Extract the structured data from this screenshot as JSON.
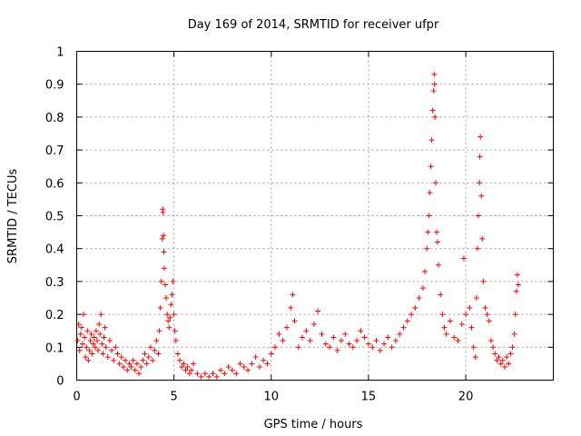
{
  "chart_data": {
    "type": "scatter",
    "title": "Day 169 of 2014, SRMTID for receiver ufpr",
    "xlabel": "GPS time / hours",
    "ylabel": "SRMTID / TECUs",
    "xlim": [
      0,
      24.5
    ],
    "ylim": [
      0,
      1
    ],
    "xticks": [
      0,
      5,
      10,
      15,
      20
    ],
    "xtick_labels": [
      "0",
      "5",
      "10",
      "15",
      "20"
    ],
    "yticks": [
      0,
      0.1,
      0.2,
      0.3,
      0.4,
      0.5,
      0.6,
      0.7,
      0.8,
      0.9,
      1
    ],
    "ytick_labels": [
      "0",
      "0.1",
      "0.2",
      "0.3",
      "0.4",
      "0.5",
      "0.6",
      "0.7",
      "0.8",
      "0.9",
      "1"
    ],
    "grid": true,
    "marker": "+",
    "color": "#ff0000",
    "series": [
      {
        "name": "SRMTID",
        "points": [
          [
            0.05,
            0.12
          ],
          [
            0.1,
            0.17
          ],
          [
            0.15,
            0.09
          ],
          [
            0.2,
            0.14
          ],
          [
            0.25,
            0.16
          ],
          [
            0.3,
            0.11
          ],
          [
            0.35,
            0.2
          ],
          [
            0.4,
            0.13
          ],
          [
            0.45,
            0.07
          ],
          [
            0.5,
            0.1
          ],
          [
            0.55,
            0.15
          ],
          [
            0.6,
            0.06
          ],
          [
            0.65,
            0.09
          ],
          [
            0.7,
            0.12
          ],
          [
            0.75,
            0.14
          ],
          [
            0.8,
            0.08
          ],
          [
            0.85,
            0.11
          ],
          [
            0.9,
            0.13
          ],
          [
            0.95,
            0.1
          ],
          [
            1.0,
            0.15
          ],
          [
            1.05,
            0.12
          ],
          [
            1.1,
            0.09
          ],
          [
            1.15,
            0.17
          ],
          [
            1.2,
            0.14
          ],
          [
            1.25,
            0.2
          ],
          [
            1.3,
            0.11
          ],
          [
            1.35,
            0.08
          ],
          [
            1.4,
            0.13
          ],
          [
            1.45,
            0.16
          ],
          [
            1.5,
            0.1
          ],
          [
            1.6,
            0.07
          ],
          [
            1.7,
            0.12
          ],
          [
            1.8,
            0.09
          ],
          [
            1.9,
            0.06
          ],
          [
            2.0,
            0.1
          ],
          [
            2.1,
            0.08
          ],
          [
            2.2,
            0.05
          ],
          [
            2.3,
            0.07
          ],
          [
            2.4,
            0.04
          ],
          [
            2.5,
            0.06
          ],
          [
            2.6,
            0.03
          ],
          [
            2.7,
            0.05
          ],
          [
            2.8,
            0.04
          ],
          [
            2.9,
            0.06
          ],
          [
            3.0,
            0.03
          ],
          [
            3.1,
            0.05
          ],
          [
            3.2,
            0.02
          ],
          [
            3.3,
            0.04
          ],
          [
            3.4,
            0.06
          ],
          [
            3.5,
            0.08
          ],
          [
            3.6,
            0.05
          ],
          [
            3.7,
            0.07
          ],
          [
            3.8,
            0.1
          ],
          [
            3.9,
            0.06
          ],
          [
            4.0,
            0.09
          ],
          [
            4.1,
            0.12
          ],
          [
            4.2,
            0.08
          ],
          [
            4.25,
            0.15
          ],
          [
            4.3,
            0.22
          ],
          [
            4.35,
            0.3
          ],
          [
            4.4,
            0.43
          ],
          [
            4.42,
            0.52
          ],
          [
            4.44,
            0.51
          ],
          [
            4.46,
            0.44
          ],
          [
            4.48,
            0.39
          ],
          [
            4.5,
            0.34
          ],
          [
            4.55,
            0.29
          ],
          [
            4.6,
            0.25
          ],
          [
            4.65,
            0.2
          ],
          [
            4.7,
            0.18
          ],
          [
            4.75,
            0.16
          ],
          [
            4.8,
            0.19
          ],
          [
            4.85,
            0.23
          ],
          [
            4.9,
            0.26
          ],
          [
            4.95,
            0.3
          ],
          [
            5.0,
            0.2
          ],
          [
            5.05,
            0.15
          ],
          [
            5.1,
            0.12
          ],
          [
            5.2,
            0.08
          ],
          [
            5.3,
            0.06
          ],
          [
            5.4,
            0.04
          ],
          [
            5.5,
            0.05
          ],
          [
            5.6,
            0.03
          ],
          [
            5.7,
            0.04
          ],
          [
            5.8,
            0.02
          ],
          [
            5.9,
            0.03
          ],
          [
            6.0,
            0.05
          ],
          [
            6.2,
            0.02
          ],
          [
            6.4,
            0.01
          ],
          [
            6.6,
            0.02
          ],
          [
            6.8,
            0.01
          ],
          [
            7.0,
            0.02
          ],
          [
            7.2,
            0.01
          ],
          [
            7.4,
            0.03
          ],
          [
            7.6,
            0.02
          ],
          [
            7.8,
            0.04
          ],
          [
            8.0,
            0.03
          ],
          [
            8.2,
            0.02
          ],
          [
            8.4,
            0.05
          ],
          [
            8.6,
            0.04
          ],
          [
            8.8,
            0.03
          ],
          [
            9.0,
            0.05
          ],
          [
            9.2,
            0.07
          ],
          [
            9.4,
            0.04
          ],
          [
            9.6,
            0.06
          ],
          [
            9.8,
            0.05
          ],
          [
            10.0,
            0.08
          ],
          [
            10.2,
            0.1
          ],
          [
            10.4,
            0.14
          ],
          [
            10.6,
            0.12
          ],
          [
            10.8,
            0.16
          ],
          [
            11.0,
            0.22
          ],
          [
            11.1,
            0.26
          ],
          [
            11.2,
            0.18
          ],
          [
            11.4,
            0.1
          ],
          [
            11.6,
            0.13
          ],
          [
            11.8,
            0.15
          ],
          [
            12.0,
            0.12
          ],
          [
            12.2,
            0.17
          ],
          [
            12.4,
            0.21
          ],
          [
            12.6,
            0.14
          ],
          [
            12.8,
            0.11
          ],
          [
            13.0,
            0.1
          ],
          [
            13.2,
            0.13
          ],
          [
            13.4,
            0.09
          ],
          [
            13.6,
            0.12
          ],
          [
            13.8,
            0.14
          ],
          [
            14.0,
            0.11
          ],
          [
            14.2,
            0.1
          ],
          [
            14.4,
            0.12
          ],
          [
            14.6,
            0.15
          ],
          [
            14.8,
            0.13
          ],
          [
            15.0,
            0.11
          ],
          [
            15.2,
            0.1
          ],
          [
            15.4,
            0.12
          ],
          [
            15.6,
            0.09
          ],
          [
            15.8,
            0.11
          ],
          [
            16.0,
            0.13
          ],
          [
            16.2,
            0.1
          ],
          [
            16.4,
            0.12
          ],
          [
            16.6,
            0.14
          ],
          [
            16.8,
            0.16
          ],
          [
            17.0,
            0.18
          ],
          [
            17.2,
            0.2
          ],
          [
            17.4,
            0.22
          ],
          [
            17.6,
            0.25
          ],
          [
            17.8,
            0.28
          ],
          [
            17.9,
            0.33
          ],
          [
            18.0,
            0.4
          ],
          [
            18.05,
            0.45
          ],
          [
            18.1,
            0.5
          ],
          [
            18.15,
            0.57
          ],
          [
            18.2,
            0.65
          ],
          [
            18.25,
            0.73
          ],
          [
            18.3,
            0.82
          ],
          [
            18.35,
            0.88
          ],
          [
            18.38,
            0.93
          ],
          [
            18.4,
            0.9
          ],
          [
            18.42,
            0.8
          ],
          [
            18.45,
            0.6
          ],
          [
            18.5,
            0.45
          ],
          [
            18.55,
            0.42
          ],
          [
            18.6,
            0.35
          ],
          [
            18.7,
            0.26
          ],
          [
            18.8,
            0.2
          ],
          [
            18.9,
            0.16
          ],
          [
            19.0,
            0.14
          ],
          [
            19.2,
            0.18
          ],
          [
            19.4,
            0.13
          ],
          [
            19.6,
            0.12
          ],
          [
            19.8,
            0.17
          ],
          [
            19.9,
            0.37
          ],
          [
            20.0,
            0.2
          ],
          [
            20.2,
            0.22
          ],
          [
            20.3,
            0.16
          ],
          [
            20.4,
            0.1
          ],
          [
            20.5,
            0.07
          ],
          [
            20.55,
            0.25
          ],
          [
            20.6,
            0.4
          ],
          [
            20.65,
            0.5
          ],
          [
            20.7,
            0.6
          ],
          [
            20.72,
            0.68
          ],
          [
            20.75,
            0.74
          ],
          [
            20.8,
            0.56
          ],
          [
            20.85,
            0.43
          ],
          [
            20.9,
            0.3
          ],
          [
            21.0,
            0.22
          ],
          [
            21.1,
            0.2
          ],
          [
            21.2,
            0.18
          ],
          [
            21.3,
            0.12
          ],
          [
            21.4,
            0.1
          ],
          [
            21.5,
            0.08
          ],
          [
            21.6,
            0.06
          ],
          [
            21.7,
            0.07
          ],
          [
            21.8,
            0.05
          ],
          [
            21.9,
            0.06
          ],
          [
            22.0,
            0.04
          ],
          [
            22.1,
            0.07
          ],
          [
            22.2,
            0.05
          ],
          [
            22.3,
            0.08
          ],
          [
            22.4,
            0.1
          ],
          [
            22.5,
            0.14
          ],
          [
            22.55,
            0.2
          ],
          [
            22.6,
            0.27
          ],
          [
            22.65,
            0.32
          ],
          [
            22.7,
            0.29
          ]
        ]
      }
    ]
  }
}
